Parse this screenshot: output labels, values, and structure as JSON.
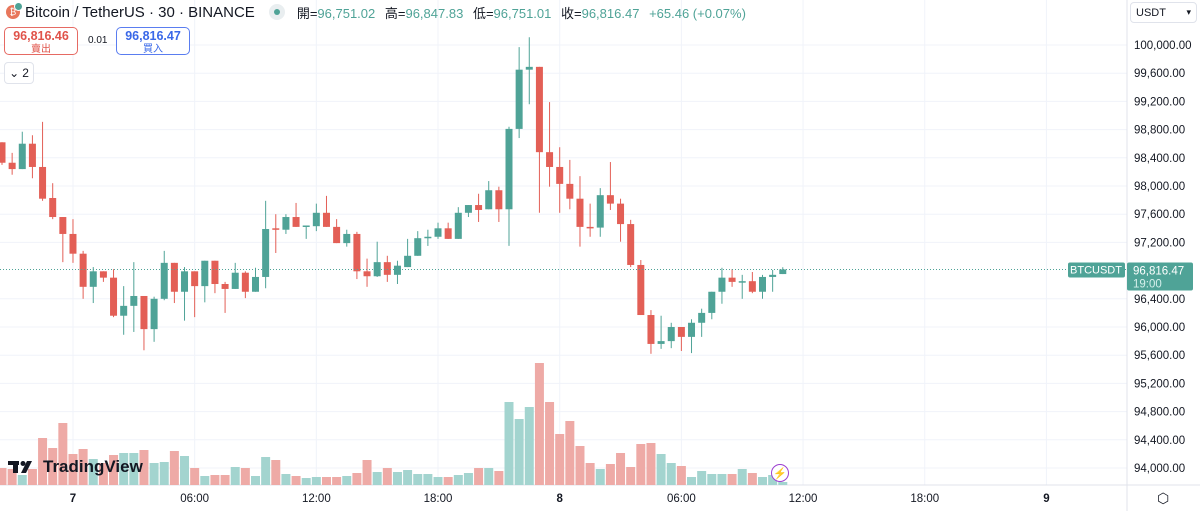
{
  "header": {
    "symbol_title": "Bitcoin / TetherUS · 30 · BINANCE",
    "open_label": "開=",
    "open": "96,751.02",
    "high_label": "高=",
    "high": "96,847.83",
    "low_label": "低=",
    "low": "96,751.01",
    "close_label": "收=",
    "close": "96,816.47",
    "change": "+65.46 (+0.07%)"
  },
  "trade": {
    "sell_price": "96,816.46",
    "sell_label": "賣出",
    "spread": "0.01",
    "buy_price": "96,816.47",
    "buy_label": "買入"
  },
  "indicators_toggle": {
    "icon": "chevron-down-icon",
    "count": "2"
  },
  "currency_select": {
    "value": "USDT"
  },
  "logo_text": "TradingView",
  "last_price_tag": {
    "symbol": "BTCUSDT",
    "price": "96,816.47",
    "countdown": "19:00"
  },
  "colors": {
    "up": "#4fa397",
    "down": "#e35f56",
    "up_volume": "#a3d4cf",
    "down_volume": "#eeaaa6",
    "grid": "#f0f3fa"
  },
  "chart_data": {
    "type": "candlestick",
    "title": "Bitcoin / TetherUS · 30 · BINANCE",
    "interval_minutes": 30,
    "y_ticks": [
      "100,000.00",
      "99,600.00",
      "99,200.00",
      "98,800.00",
      "98,400.00",
      "98,000.00",
      "97,600.00",
      "97,200.00",
      "96,400.00",
      "96,000.00",
      "95,600.00",
      "95,200.00",
      "94,800.00",
      "94,400.00",
      "94,000.00"
    ],
    "y_tick_values": [
      100000,
      99600,
      99200,
      98800,
      98400,
      98000,
      97600,
      97200,
      96400,
      96000,
      95600,
      95200,
      94800,
      94400,
      94000
    ],
    "x_ticks": [
      "7",
      "06:00",
      "12:00",
      "18:00",
      "8",
      "06:00",
      "12:00",
      "18:00",
      "9"
    ],
    "x_tick_candle_index": [
      7,
      19,
      31,
      43,
      55,
      67,
      79,
      91,
      103
    ],
    "ylim": [
      93700,
      100500
    ],
    "ohlc": [
      [
        98620,
        98620,
        98300,
        98330
      ],
      [
        98330,
        98470,
        98160,
        98240
      ],
      [
        98240,
        98770,
        98240,
        98600
      ],
      [
        98600,
        98720,
        98110,
        98270
      ],
      [
        98270,
        98910,
        97790,
        97820
      ],
      [
        97830,
        98040,
        97530,
        97560
      ],
      [
        97560,
        97560,
        96920,
        97320
      ],
      [
        97320,
        97530,
        96910,
        97040
      ],
      [
        97040,
        97080,
        96400,
        96570
      ],
      [
        96570,
        96850,
        96340,
        96790
      ],
      [
        96790,
        96790,
        96640,
        96700
      ],
      [
        96700,
        96820,
        96140,
        96160
      ],
      [
        96160,
        96580,
        95890,
        96300
      ],
      [
        96300,
        96920,
        95930,
        96440
      ],
      [
        96440,
        96440,
        95670,
        95970
      ],
      [
        95970,
        96430,
        95790,
        96400
      ],
      [
        96400,
        97080,
        96380,
        96910
      ],
      [
        96910,
        96910,
        96340,
        96500
      ],
      [
        96500,
        96850,
        96090,
        96790
      ],
      [
        96790,
        96790,
        96140,
        96580
      ],
      [
        96580,
        96940,
        96350,
        96940
      ],
      [
        96940,
        96940,
        96480,
        96610
      ],
      [
        96610,
        96640,
        96200,
        96540
      ],
      [
        96540,
        96910,
        96540,
        96770
      ],
      [
        96770,
        96790,
        96410,
        96500
      ],
      [
        96500,
        96840,
        96500,
        96710
      ],
      [
        96710,
        97790,
        96550,
        97390
      ],
      [
        97400,
        97600,
        97050,
        97390
      ],
      [
        97380,
        97600,
        97320,
        97560
      ],
      [
        97560,
        97760,
        97420,
        97420
      ],
      [
        97430,
        97440,
        97250,
        97440
      ],
      [
        97430,
        97750,
        97360,
        97620
      ],
      [
        97620,
        97860,
        97420,
        97420
      ],
      [
        97420,
        97530,
        97190,
        97190
      ],
      [
        97190,
        97380,
        97140,
        97320
      ],
      [
        97320,
        97350,
        96680,
        96790
      ],
      [
        96790,
        96970,
        96570,
        96720
      ],
      [
        96720,
        97210,
        96710,
        96920
      ],
      [
        96920,
        97010,
        96640,
        96740
      ],
      [
        96740,
        96940,
        96610,
        96870
      ],
      [
        96850,
        97250,
        96850,
        97010
      ],
      [
        97010,
        97360,
        97010,
        97260
      ],
      [
        97260,
        97380,
        97150,
        97280
      ],
      [
        97280,
        97480,
        97250,
        97400
      ],
      [
        97400,
        97480,
        97250,
        97250
      ],
      [
        97250,
        97700,
        97250,
        97620
      ],
      [
        97620,
        97730,
        97560,
        97730
      ],
      [
        97730,
        97890,
        97490,
        97660
      ],
      [
        97670,
        98070,
        97670,
        97940
      ],
      [
        97940,
        97990,
        97490,
        97670
      ],
      [
        97670,
        98840,
        97150,
        98810
      ],
      [
        98810,
        99970,
        98680,
        99650
      ],
      [
        99650,
        100110,
        99160,
        99690
      ],
      [
        99690,
        99690,
        97620,
        98480
      ],
      [
        98480,
        99190,
        97990,
        98270
      ],
      [
        98270,
        98550,
        97620,
        98030
      ],
      [
        98030,
        98370,
        97670,
        97820
      ],
      [
        97820,
        98140,
        97140,
        97420
      ],
      [
        97420,
        97750,
        97280,
        97410
      ],
      [
        97410,
        97970,
        97280,
        97870
      ],
      [
        97870,
        98340,
        97660,
        97750
      ],
      [
        97750,
        97820,
        97210,
        97460
      ],
      [
        97460,
        97520,
        96850,
        96880
      ],
      [
        96880,
        96950,
        96170,
        96170
      ],
      [
        96170,
        96240,
        95620,
        95760
      ],
      [
        95760,
        96160,
        95690,
        95800
      ],
      [
        95800,
        96060,
        95700,
        96000
      ],
      [
        96000,
        96000,
        95660,
        95860
      ],
      [
        95860,
        96110,
        95630,
        96060
      ],
      [
        96060,
        96260,
        95860,
        96200
      ],
      [
        96200,
        96500,
        96110,
        96500
      ],
      [
        96500,
        96840,
        96330,
        96700
      ],
      [
        96700,
        96820,
        96570,
        96640
      ],
      [
        96640,
        96740,
        96400,
        96650
      ],
      [
        96650,
        96780,
        96480,
        96500
      ],
      [
        96500,
        96740,
        96400,
        96710
      ],
      [
        96710,
        96810,
        96500,
        96740
      ],
      [
        96751.02,
        96847.83,
        96751.01,
        96816.47
      ]
    ],
    "volume": [
      17,
      16,
      10,
      16,
      47,
      37,
      62,
      31,
      36,
      26,
      22,
      30,
      32,
      32,
      35,
      22,
      23,
      34,
      29,
      17,
      9,
      10,
      10,
      18,
      17,
      9,
      28,
      25,
      11,
      9,
      7,
      8,
      8,
      8,
      9,
      12,
      25,
      13,
      17,
      13,
      15,
      11,
      11,
      8,
      8,
      10,
      12,
      17,
      17,
      14,
      83,
      66,
      78,
      122,
      83,
      51,
      64,
      39,
      22,
      16,
      21,
      32,
      18,
      41,
      42,
      31,
      22,
      19,
      8,
      14,
      11,
      11,
      11,
      16,
      12,
      8,
      10,
      3
    ],
    "last_price": 96816.47,
    "grid": true
  }
}
